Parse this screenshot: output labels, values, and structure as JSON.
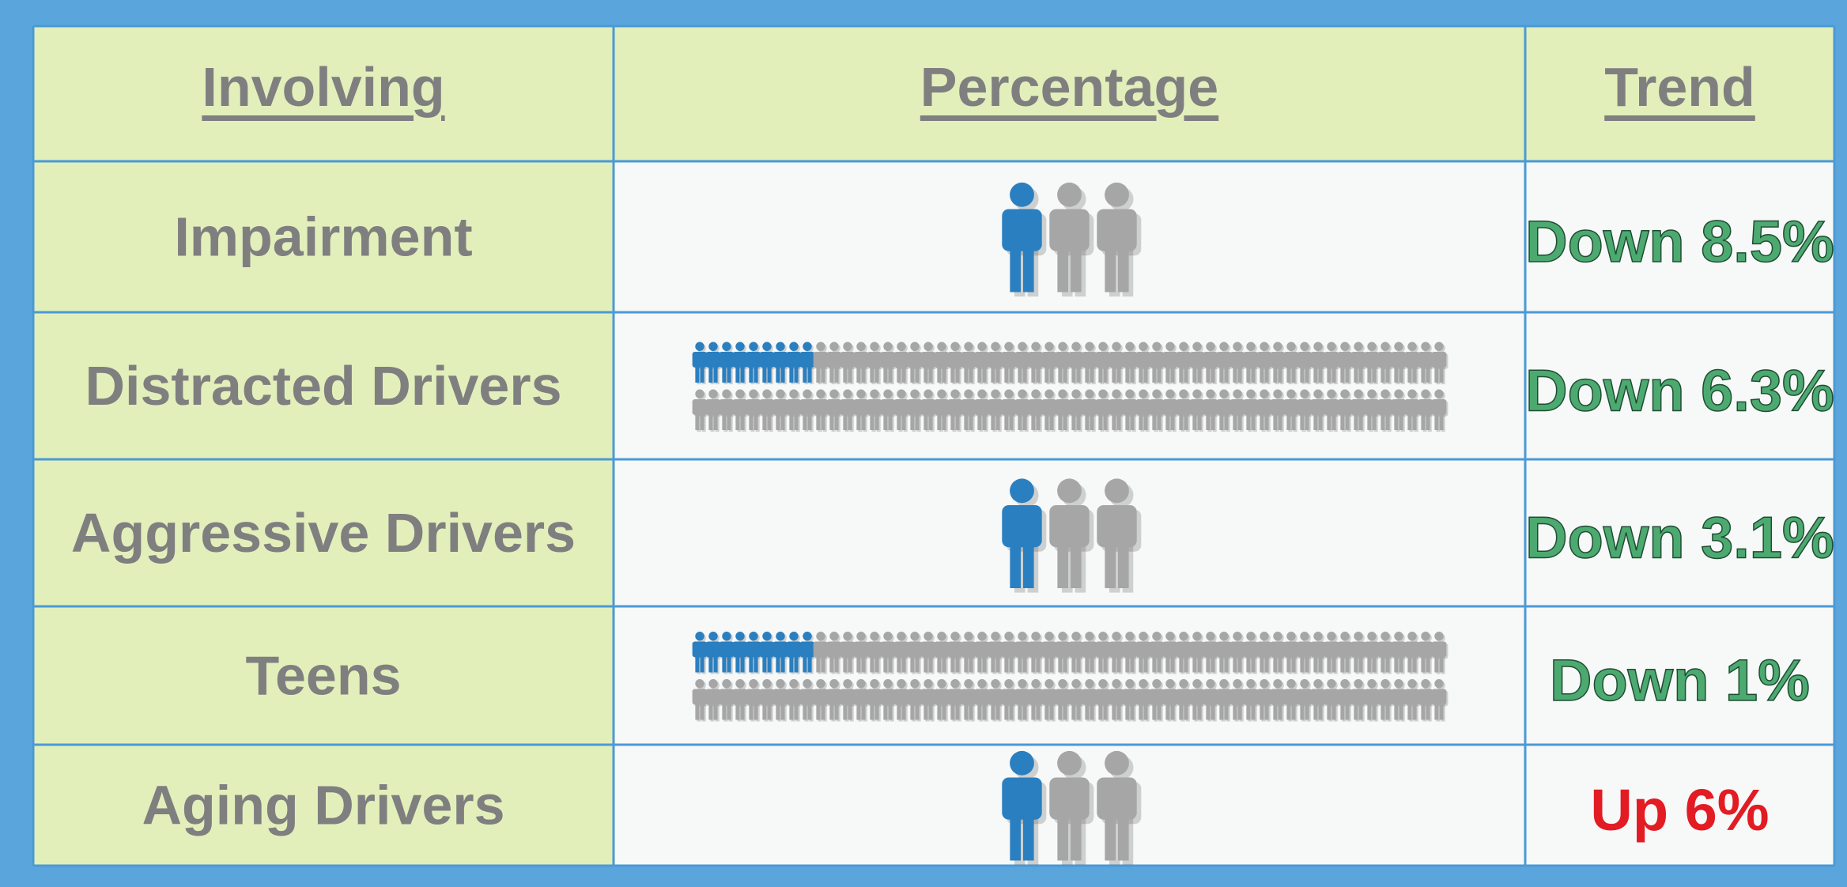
{
  "table": {
    "header": [
      "Involving",
      "Percentage",
      "Trend"
    ],
    "colors": {
      "highlighted": "#2a7fc0",
      "other": "#a6a6a6"
    },
    "rows": [
      {
        "involving": "Impairment",
        "icons": {
          "highlighted": 1,
          "total": 3
        },
        "trend": "Down 8.5%",
        "trend_color": "#4caa70"
      },
      {
        "involving": "Distracted Drivers",
        "icons": {
          "highlighted": 9,
          "total": 112
        },
        "trend": "Down 6.3%",
        "trend_color": "#4caa70"
      },
      {
        "involving": "Aggressive Drivers",
        "icons": {
          "highlighted": 1,
          "total": 3
        },
        "trend": "Down 3.1%",
        "trend_color": "#4caa70"
      },
      {
        "involving": "Teens",
        "icons": {
          "highlighted": 9,
          "total": 112
        },
        "trend": "Down 1%",
        "trend_color": "#4caa70"
      },
      {
        "involving": "Aging Drivers",
        "icons": {
          "highlighted": 1,
          "total": 3
        },
        "trend": "Up 6%",
        "trend_color": "#e31b23"
      }
    ]
  }
}
